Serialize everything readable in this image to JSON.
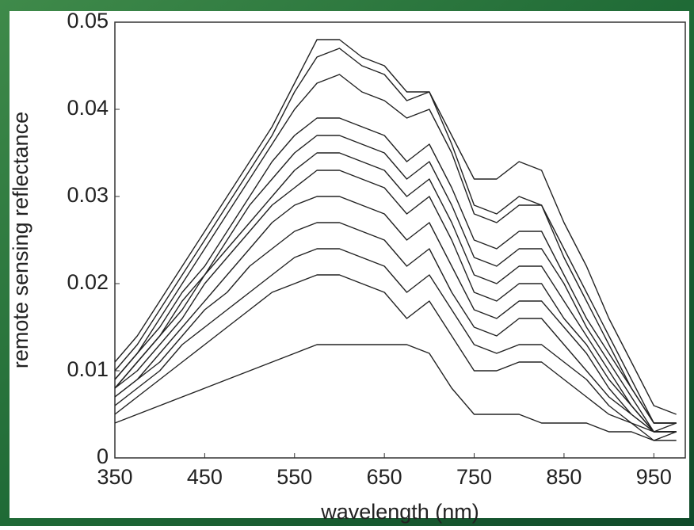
{
  "chart_data": {
    "type": "line",
    "x_label": "wavelength (nm)",
    "y_label": "remote sensing reflectance",
    "x": [
      350,
      375,
      400,
      425,
      450,
      475,
      500,
      525,
      550,
      575,
      600,
      625,
      650,
      675,
      700,
      725,
      750,
      775,
      800,
      825,
      850,
      875,
      900,
      925,
      950,
      975
    ],
    "xlim": [
      350,
      985
    ],
    "ylim": [
      0,
      0.05
    ],
    "xticks": [
      350,
      450,
      550,
      650,
      750,
      850,
      950
    ],
    "yticks": [
      0,
      0.01,
      0.02,
      0.03,
      0.04,
      0.05
    ],
    "series": [
      {
        "color": "#222222",
        "values": [
          0.011,
          0.014,
          0.018,
          0.022,
          0.026,
          0.03,
          0.034,
          0.038,
          0.043,
          0.048,
          0.048,
          0.046,
          0.045,
          0.042,
          0.042,
          0.037,
          0.032,
          0.032,
          0.034,
          0.033,
          0.027,
          0.022,
          0.016,
          0.011,
          0.006,
          0.005
        ]
      },
      {
        "color": "#222222",
        "values": [
          0.01,
          0.013,
          0.017,
          0.021,
          0.025,
          0.029,
          0.033,
          0.037,
          0.042,
          0.046,
          0.047,
          0.045,
          0.044,
          0.041,
          0.042,
          0.036,
          0.029,
          0.028,
          0.03,
          0.029,
          0.024,
          0.019,
          0.014,
          0.009,
          0.004,
          0.004
        ]
      },
      {
        "color": "#222222",
        "values": [
          0.009,
          0.012,
          0.016,
          0.02,
          0.024,
          0.028,
          0.032,
          0.036,
          0.04,
          0.043,
          0.044,
          0.042,
          0.041,
          0.039,
          0.04,
          0.035,
          0.028,
          0.027,
          0.029,
          0.029,
          0.023,
          0.018,
          0.013,
          0.008,
          0.004,
          0.004
        ]
      },
      {
        "color": "#222222",
        "values": [
          0.009,
          0.012,
          0.015,
          0.019,
          0.022,
          0.026,
          0.03,
          0.034,
          0.037,
          0.039,
          0.039,
          0.038,
          0.037,
          0.034,
          0.036,
          0.031,
          0.025,
          0.024,
          0.026,
          0.026,
          0.021,
          0.016,
          0.012,
          0.008,
          0.004,
          0.004
        ]
      },
      {
        "color": "#222222",
        "values": [
          0.008,
          0.011,
          0.014,
          0.018,
          0.021,
          0.025,
          0.029,
          0.032,
          0.035,
          0.037,
          0.037,
          0.036,
          0.035,
          0.032,
          0.034,
          0.029,
          0.023,
          0.022,
          0.024,
          0.024,
          0.02,
          0.015,
          0.011,
          0.007,
          0.003,
          0.004
        ]
      },
      {
        "color": "#222222",
        "values": [
          0.008,
          0.011,
          0.014,
          0.017,
          0.021,
          0.024,
          0.027,
          0.03,
          0.033,
          0.035,
          0.035,
          0.034,
          0.033,
          0.03,
          0.032,
          0.027,
          0.021,
          0.02,
          0.022,
          0.022,
          0.018,
          0.014,
          0.01,
          0.006,
          0.003,
          0.003
        ]
      },
      {
        "color": "#222222",
        "values": [
          0.008,
          0.01,
          0.013,
          0.016,
          0.02,
          0.023,
          0.026,
          0.029,
          0.031,
          0.033,
          0.033,
          0.032,
          0.031,
          0.028,
          0.03,
          0.025,
          0.019,
          0.018,
          0.02,
          0.02,
          0.016,
          0.013,
          0.009,
          0.006,
          0.003,
          0.003
        ]
      },
      {
        "color": "#222222",
        "values": [
          0.007,
          0.009,
          0.012,
          0.015,
          0.018,
          0.021,
          0.024,
          0.027,
          0.029,
          0.03,
          0.03,
          0.029,
          0.028,
          0.025,
          0.027,
          0.022,
          0.017,
          0.016,
          0.018,
          0.018,
          0.015,
          0.012,
          0.008,
          0.005,
          0.003,
          0.003
        ]
      },
      {
        "color": "#222222",
        "values": [
          0.007,
          0.009,
          0.011,
          0.014,
          0.017,
          0.019,
          0.022,
          0.024,
          0.026,
          0.027,
          0.027,
          0.026,
          0.025,
          0.022,
          0.024,
          0.019,
          0.015,
          0.014,
          0.016,
          0.016,
          0.013,
          0.01,
          0.007,
          0.005,
          0.003,
          0.003
        ]
      },
      {
        "color": "#222222",
        "values": [
          0.006,
          0.008,
          0.01,
          0.013,
          0.015,
          0.017,
          0.019,
          0.021,
          0.023,
          0.024,
          0.024,
          0.023,
          0.022,
          0.019,
          0.021,
          0.017,
          0.013,
          0.012,
          0.013,
          0.013,
          0.011,
          0.009,
          0.006,
          0.004,
          0.003,
          0.003
        ]
      },
      {
        "color": "#222222",
        "values": [
          0.005,
          0.007,
          0.009,
          0.011,
          0.013,
          0.015,
          0.017,
          0.019,
          0.02,
          0.021,
          0.021,
          0.02,
          0.019,
          0.016,
          0.018,
          0.014,
          0.01,
          0.01,
          0.011,
          0.011,
          0.009,
          0.007,
          0.005,
          0.004,
          0.002,
          0.002
        ]
      },
      {
        "color": "#222222",
        "values": [
          0.004,
          0.005,
          0.006,
          0.007,
          0.008,
          0.009,
          0.01,
          0.011,
          0.012,
          0.013,
          0.013,
          0.013,
          0.013,
          0.013,
          0.012,
          0.008,
          0.005,
          0.005,
          0.005,
          0.004,
          0.004,
          0.004,
          0.003,
          0.003,
          0.002,
          0.003
        ]
      }
    ]
  }
}
